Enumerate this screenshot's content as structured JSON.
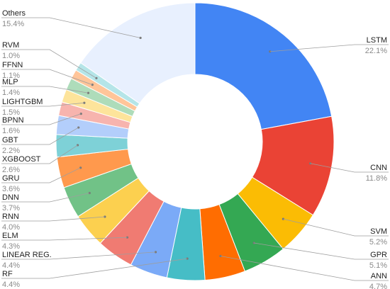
{
  "chart_data": {
    "type": "pie",
    "style": "donut",
    "unit": "%",
    "colors": {
      "LSTM": "#4285f4",
      "CNN": "#ea4335",
      "SVM": "#fbbc04",
      "GPR": "#34a853",
      "ANN": "#ff6d01",
      "RF": "#46bdc6",
      "LINEAR REG.": "#7baaf7",
      "ELM": "#f07b72",
      "RNN": "#fcd04f",
      "DNN": "#71c287",
      "GRU": "#ff994d",
      "XGBOOST": "#7ed1d7",
      "GBT": "#b3cefb",
      "BPNN": "#f7b4ae",
      "LIGHTGBM": "#fde49b",
      "MLP": "#aedcba",
      "FFNN": "#ffc599",
      "RVM": "#b5e5e8",
      "Others": "#e8f0fe"
    },
    "slices": [
      {
        "label": "LSTM",
        "value": 22.1,
        "display": "22.1%"
      },
      {
        "label": "CNN",
        "value": 11.8,
        "display": "11.8%"
      },
      {
        "label": "SVM",
        "value": 5.2,
        "display": "5.2%"
      },
      {
        "label": "GPR",
        "value": 5.1,
        "display": "5.1%"
      },
      {
        "label": "ANN",
        "value": 4.7,
        "display": "4.7%"
      },
      {
        "label": "RF",
        "value": 4.4,
        "display": "4.4%"
      },
      {
        "label": "LINEAR REG.",
        "value": 4.4,
        "display": "4.4%"
      },
      {
        "label": "ELM",
        "value": 4.3,
        "display": "4.3%"
      },
      {
        "label": "RNN",
        "value": 4.0,
        "display": "4.0%"
      },
      {
        "label": "DNN",
        "value": 3.7,
        "display": "3.7%"
      },
      {
        "label": "GRU",
        "value": 3.6,
        "display": "3.6%"
      },
      {
        "label": "XGBOOST",
        "value": 2.6,
        "display": "2.6%"
      },
      {
        "label": "GBT",
        "value": 2.2,
        "display": "2.2%"
      },
      {
        "label": "BPNN",
        "value": 1.6,
        "display": "1.6%"
      },
      {
        "label": "LIGHTGBM",
        "value": 1.5,
        "display": "1.5%"
      },
      {
        "label": "MLP",
        "value": 1.4,
        "display": "1.4%"
      },
      {
        "label": "FFNN",
        "value": 1.1,
        "display": "1.1%"
      },
      {
        "label": "RVM",
        "value": 1.0,
        "display": "1.0%"
      },
      {
        "label": "Others",
        "value": 15.4,
        "display": "15.4%"
      }
    ]
  }
}
